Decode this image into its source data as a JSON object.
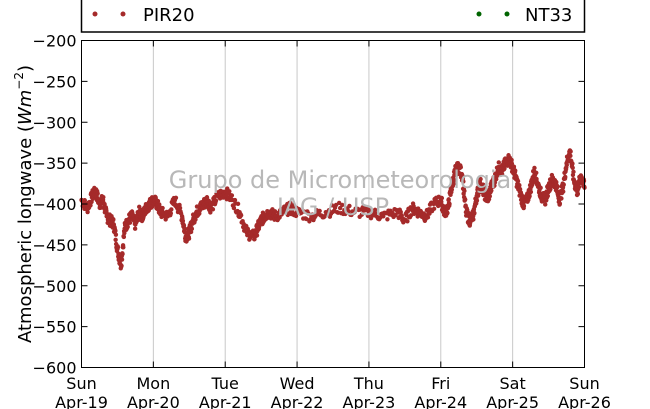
{
  "legend": {
    "entries": [
      {
        "label": "PIR20",
        "color": "#a52a2a"
      },
      {
        "label": "NT33",
        "color": "#006400"
      }
    ]
  },
  "watermark": {
    "line1": "Grupo de Micrometeorologia",
    "line2": "IAG / USP"
  },
  "chart_data": {
    "type": "scatter",
    "title": "",
    "xlabel": "",
    "ylabel": "Atmospheric longwave (Wm^-2)",
    "ylabel_parts": {
      "text": "Atmospheric longwave (",
      "unit": "Wm",
      "exp": "−2",
      "close": ")"
    },
    "xlim": [
      "2015-04-19",
      "2015-04-26"
    ],
    "ylim": [
      -600,
      -200
    ],
    "grid": {
      "x": true,
      "y": false
    },
    "legend_position": "top",
    "x_ticks": [
      {
        "day": "Sun",
        "date": "Apr-19"
      },
      {
        "day": "Mon",
        "date": "Apr-20"
      },
      {
        "day": "Tue",
        "date": "Apr-21"
      },
      {
        "day": "Wed",
        "date": "Apr-22"
      },
      {
        "day": "Thu",
        "date": "Apr-23"
      },
      {
        "day": "Fri",
        "date": "Apr-24"
      },
      {
        "day": "Sat",
        "date": "Apr-25"
      },
      {
        "day": "Sun",
        "date": "Apr-26"
      }
    ],
    "y_ticks": [
      "−200",
      "−250",
      "−300",
      "−350",
      "−400",
      "−450",
      "−500",
      "−550",
      "−600"
    ],
    "y_tick_values": [
      -200,
      -250,
      -300,
      -350,
      -400,
      -450,
      -500,
      -550,
      -600
    ],
    "series": [
      {
        "name": "PIR20",
        "color": "#a52a2a",
        "x_days": [
          0,
          0.08,
          0.15,
          0.2,
          0.25,
          0.3,
          0.35,
          0.4,
          0.45,
          0.5,
          0.55,
          0.6,
          0.65,
          0.7,
          0.75,
          0.8,
          0.85,
          0.9,
          0.95,
          1.0,
          1.05,
          1.1,
          1.2,
          1.3,
          1.4,
          1.45,
          1.5,
          1.55,
          1.6,
          1.65,
          1.7,
          1.75,
          1.8,
          1.9,
          2.0,
          2.1,
          2.2,
          2.3,
          2.4,
          2.45,
          2.5,
          2.55,
          2.6,
          2.7,
          2.8,
          2.9,
          3.0,
          3.2,
          3.4,
          3.6,
          3.8,
          4.0,
          4.2,
          4.4,
          4.5,
          4.6,
          4.7,
          4.8,
          4.9,
          5.0,
          5.05,
          5.1,
          5.15,
          5.2,
          5.25,
          5.3,
          5.35,
          5.4,
          5.45,
          5.5,
          5.55,
          5.6,
          5.65,
          5.7,
          5.75,
          5.8,
          5.85,
          5.9,
          5.95,
          6.0,
          6.05,
          6.1,
          6.15,
          6.2,
          6.25,
          6.3,
          6.35,
          6.4,
          6.45,
          6.5,
          6.55,
          6.6,
          6.65,
          6.7,
          6.75,
          6.8,
          6.85,
          6.9,
          6.95,
          7.0
        ],
        "values": [
          -395,
          -405,
          -390,
          -385,
          -400,
          -395,
          -415,
          -420,
          -425,
          -455,
          -475,
          -430,
          -420,
          -415,
          -425,
          -410,
          -415,
          -405,
          -400,
          -395,
          -400,
          -410,
          -415,
          -395,
          -415,
          -440,
          -435,
          -420,
          -410,
          -405,
          -400,
          -395,
          -405,
          -390,
          -385,
          -395,
          -410,
          -435,
          -440,
          -430,
          -420,
          -415,
          -410,
          -415,
          -410,
          -405,
          -410,
          -415,
          -410,
          -405,
          -410,
          -410,
          -415,
          -410,
          -420,
          -405,
          -410,
          -415,
          -400,
          -395,
          -410,
          -405,
          -380,
          -360,
          -355,
          -365,
          -410,
          -420,
          -415,
          -390,
          -375,
          -385,
          -395,
          -380,
          -370,
          -355,
          -360,
          -350,
          -345,
          -355,
          -370,
          -385,
          -400,
          -395,
          -380,
          -360,
          -375,
          -390,
          -395,
          -380,
          -370,
          -375,
          -395,
          -380,
          -350,
          -335,
          -370,
          -385,
          -365,
          -380
        ]
      },
      {
        "name": "NT33",
        "color": "#006400",
        "x_days": [],
        "values": []
      }
    ]
  }
}
